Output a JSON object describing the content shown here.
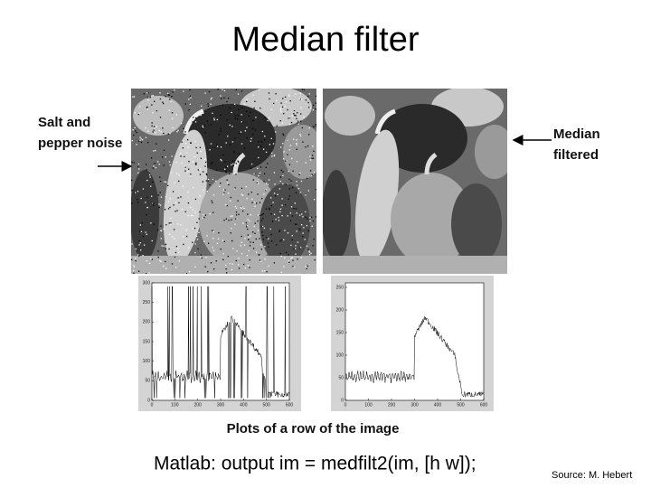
{
  "title": "Median filter",
  "left_label": [
    "Salt and",
    "pepper noise"
  ],
  "right_label": [
    "Median",
    "filtered"
  ],
  "plots": [
    {
      "xlim": [
        0,
        600
      ],
      "xticks": [
        0,
        100,
        200,
        300,
        400,
        500,
        600
      ],
      "ylim": [
        0,
        300
      ],
      "yticks": [
        0,
        50,
        100,
        150,
        200,
        250,
        300
      ]
    },
    {
      "xlim": [
        0,
        600
      ],
      "xticks": [
        0,
        100,
        200,
        300,
        400,
        500,
        600
      ],
      "ylim": [
        0,
        260
      ],
      "yticks": [
        0,
        50,
        100,
        150,
        200,
        250
      ]
    }
  ],
  "caption": "Plots of a row of the image",
  "code": "Matlab: output im = medfilt2(im, [h w]);",
  "source": "Source: M. Hebert"
}
